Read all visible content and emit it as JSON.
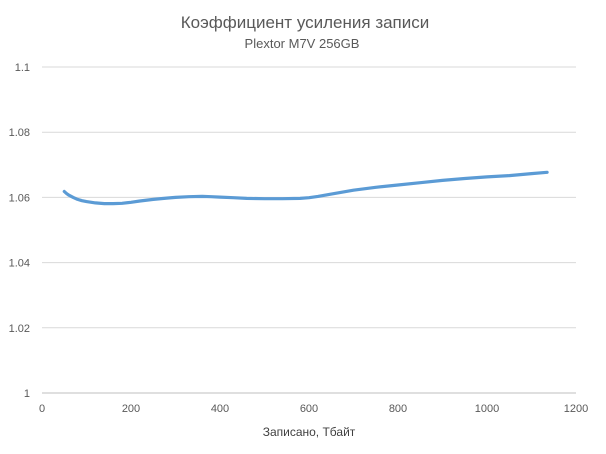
{
  "chart_data": {
    "type": "line",
    "title": "Коэффициент усиления записи",
    "subtitle": "Plextor M7V 256GB",
    "xlabel": "Записано, Тбайт",
    "ylabel": "",
    "xlim": [
      0,
      1200
    ],
    "ylim": [
      1,
      1.1
    ],
    "x_ticks": [
      "0",
      "200",
      "400",
      "600",
      "800",
      "1000",
      "1200"
    ],
    "y_ticks": [
      "1",
      "1.02",
      "1.04",
      "1.06",
      "1.08",
      "1.1"
    ],
    "grid": "horizontal",
    "legend": "none",
    "series": [
      {
        "color": "#5b9bd5",
        "x": [
          50,
          55,
          60,
          70,
          80,
          90,
          100,
          120,
          140,
          160,
          180,
          200,
          220,
          250,
          280,
          300,
          330,
          360,
          380,
          400,
          430,
          460,
          500,
          540,
          580,
          600,
          620,
          650,
          700,
          750,
          800,
          850,
          900,
          950,
          1000,
          1050,
          1100,
          1135
        ],
        "y": [
          1.0618,
          1.0612,
          1.0607,
          1.06,
          1.0594,
          1.059,
          1.0587,
          1.0583,
          1.0581,
          1.0581,
          1.0582,
          1.0585,
          1.0589,
          1.0594,
          1.0598,
          1.06,
          1.0602,
          1.0603,
          1.0602,
          1.0601,
          1.0599,
          1.0597,
          1.0596,
          1.0596,
          1.0597,
          1.0599,
          1.0603,
          1.061,
          1.0622,
          1.0631,
          1.0638,
          1.0645,
          1.0652,
          1.0658,
          1.0663,
          1.0667,
          1.0673,
          1.0677
        ]
      }
    ]
  }
}
